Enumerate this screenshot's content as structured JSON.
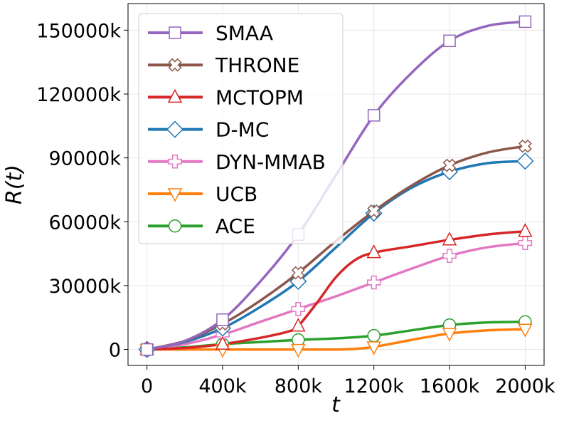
{
  "chart_data": {
    "type": "line",
    "title": "",
    "xlabel": "t",
    "ylabel": "R(t)",
    "xlim": [
      -100,
      2100
    ],
    "ylim": [
      -7500,
      162500
    ],
    "grid": true,
    "legend_position": "top-left",
    "x_ticks": [
      {
        "value": 0,
        "label": "0"
      },
      {
        "value": 400,
        "label": "400k"
      },
      {
        "value": 800,
        "label": "800k"
      },
      {
        "value": 1200,
        "label": "1200k"
      },
      {
        "value": 1600,
        "label": "1600k"
      },
      {
        "value": 2000,
        "label": "2000k"
      }
    ],
    "y_ticks": [
      {
        "value": 0,
        "label": "0"
      },
      {
        "value": 30000,
        "label": "30000k"
      },
      {
        "value": 60000,
        "label": "60000k"
      },
      {
        "value": 90000,
        "label": "90000k"
      },
      {
        "value": 120000,
        "label": "120000k"
      },
      {
        "value": 150000,
        "label": "150000k"
      }
    ],
    "x": [
      0,
      400,
      800,
      1200,
      1600,
      2000
    ],
    "series": [
      {
        "name": "SMAA",
        "color": "#9467bd",
        "marker": "square",
        "curve": [
          [
            0,
            0
          ],
          [
            200,
            4000
          ],
          [
            400,
            14000
          ],
          [
            600,
            32000
          ],
          [
            800,
            54000
          ],
          [
            1000,
            82000
          ],
          [
            1200,
            110000
          ],
          [
            1400,
            130000
          ],
          [
            1600,
            145000
          ],
          [
            1800,
            152000
          ],
          [
            2000,
            154000
          ]
        ],
        "values": [
          0,
          14000,
          54000,
          110000,
          145000,
          154000
        ]
      },
      {
        "name": "THRONE",
        "color": "#8c564b",
        "marker": "x",
        "curve": [
          [
            0,
            0
          ],
          [
            200,
            4000
          ],
          [
            400,
            12000
          ],
          [
            600,
            23000
          ],
          [
            800,
            36000
          ],
          [
            1000,
            51000
          ],
          [
            1200,
            65000
          ],
          [
            1400,
            77000
          ],
          [
            1600,
            86500
          ],
          [
            1800,
            92500
          ],
          [
            2000,
            95500
          ]
        ],
        "values": [
          0,
          12000,
          36000,
          65000,
          86500,
          95500
        ]
      },
      {
        "name": "MCTOPM",
        "color": "#d62728",
        "marker": "triangle-up",
        "curve": [
          [
            0,
            0
          ],
          [
            200,
            700
          ],
          [
            400,
            2500
          ],
          [
            600,
            5500
          ],
          [
            750,
            8500
          ],
          [
            800,
            11000
          ],
          [
            900,
            22000
          ],
          [
            1000,
            34000
          ],
          [
            1100,
            42000
          ],
          [
            1200,
            45500
          ],
          [
            1400,
            48500
          ],
          [
            1600,
            51500
          ],
          [
            1800,
            54000
          ],
          [
            2000,
            55500
          ]
        ],
        "values": [
          0,
          2500,
          11000,
          45500,
          51500,
          55500
        ]
      },
      {
        "name": "D-MC",
        "color": "#1f77b4",
        "marker": "diamond",
        "curve": [
          [
            0,
            0
          ],
          [
            200,
            3500
          ],
          [
            400,
            10000
          ],
          [
            600,
            20000
          ],
          [
            800,
            32000
          ],
          [
            1000,
            48000
          ],
          [
            1200,
            64000
          ],
          [
            1400,
            76000
          ],
          [
            1600,
            83500
          ],
          [
            1800,
            87500
          ],
          [
            2000,
            88500
          ]
        ],
        "values": [
          0,
          10000,
          32000,
          64000,
          83500,
          88500
        ]
      },
      {
        "name": "DYN-MMAB",
        "color": "#e377c2",
        "marker": "plus",
        "curve": [
          [
            0,
            0
          ],
          [
            200,
            2500
          ],
          [
            400,
            7000
          ],
          [
            600,
            13000
          ],
          [
            800,
            19000
          ],
          [
            1000,
            25000
          ],
          [
            1200,
            31500
          ],
          [
            1400,
            38000
          ],
          [
            1600,
            44000
          ],
          [
            1800,
            48000
          ],
          [
            2000,
            50000
          ]
        ],
        "values": [
          0,
          7000,
          19000,
          31500,
          44000,
          50000
        ]
      },
      {
        "name": "UCB",
        "color": "#ff7f0e",
        "marker": "triangle-down",
        "curve": [
          [
            0,
            0
          ],
          [
            400,
            0
          ],
          [
            800,
            0
          ],
          [
            1000,
            0
          ],
          [
            1100,
            300
          ],
          [
            1200,
            1200
          ],
          [
            1400,
            4500
          ],
          [
            1600,
            7500
          ],
          [
            1800,
            9000
          ],
          [
            2000,
            9500
          ]
        ],
        "values": [
          0,
          0,
          0,
          1200,
          7500,
          9500
        ]
      },
      {
        "name": "ACE",
        "color": "#2ca02c",
        "marker": "circle",
        "curve": [
          [
            0,
            0
          ],
          [
            200,
            1000
          ],
          [
            400,
            2500
          ],
          [
            600,
            3500
          ],
          [
            800,
            4500
          ],
          [
            1000,
            5200
          ],
          [
            1200,
            6500
          ],
          [
            1400,
            9000
          ],
          [
            1600,
            11500
          ],
          [
            1800,
            12700
          ],
          [
            2000,
            13000
          ]
        ],
        "values": [
          0,
          2500,
          4500,
          6500,
          11500,
          13000
        ]
      }
    ]
  }
}
